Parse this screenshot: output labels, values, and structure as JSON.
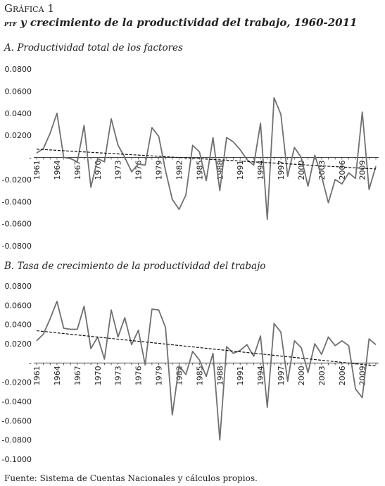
{
  "header": {
    "figure_label": "Gráfica 1",
    "title_abbrev": "ptf",
    "title_rest": " y crecimiento de la productividad del trabajo, 1960-2011"
  },
  "source": "Fuente: Sistema de Cuentas Nacionales y cálculos propios.",
  "chart_data": [
    {
      "type": "line",
      "title": "A. Productividad total de los factores",
      "xlabel": "",
      "ylabel": "",
      "ylim": [
        -0.08,
        0.08
      ],
      "yticks": [
        "0.0800",
        "0.0600",
        "0.0400",
        "0.0200",
        "-",
        "-0.0200",
        "-0.0400",
        "-0.0600",
        "-0.0800"
      ],
      "xticks": [
        "1961",
        "1964",
        "1967",
        "1970",
        "1973",
        "1976",
        "1979",
        "1982",
        "1985",
        "1988",
        "1991",
        "1994",
        "1997",
        "2000",
        "2003",
        "2006",
        "2009"
      ],
      "grid": false,
      "x": [
        1961,
        1962,
        1963,
        1964,
        1965,
        1966,
        1967,
        1968,
        1969,
        1970,
        1971,
        1972,
        1973,
        1974,
        1975,
        1976,
        1977,
        1978,
        1979,
        1980,
        1981,
        1982,
        1983,
        1984,
        1985,
        1986,
        1987,
        1988,
        1989,
        1990,
        1991,
        1992,
        1993,
        1994,
        1995,
        1996,
        1997,
        1998,
        1999,
        2000,
        2001,
        2002,
        2003,
        2004,
        2005,
        2006,
        2007,
        2008,
        2009,
        2010,
        2011
      ],
      "series": [
        {
          "values": [
            0.004,
            0.008,
            0.022,
            0.04,
            0.0,
            -0.001,
            -0.004,
            0.029,
            -0.027,
            -0.001,
            -0.004,
            0.035,
            0.011,
            0.0,
            -0.013,
            -0.006,
            -0.007,
            0.027,
            0.019,
            -0.012,
            -0.038,
            -0.047,
            -0.034,
            0.011,
            0.005,
            -0.021,
            0.018,
            -0.03,
            0.018,
            0.014,
            0.007,
            -0.002,
            -0.007,
            0.031,
            -0.056,
            0.054,
            0.039,
            -0.017,
            0.009,
            0.0,
            -0.026,
            0.002,
            -0.017,
            -0.041,
            -0.02,
            -0.024,
            -0.014,
            -0.019,
            0.041,
            -0.029,
            -0.008
          ]
        }
      ],
      "trend": {
        "x": [
          1961,
          2011
        ],
        "values": [
          0.0075,
          -0.0105
        ]
      }
    },
    {
      "type": "line",
      "title": "B. Tasa de crecimiento de la productividad del trabajo",
      "xlabel": "",
      "ylabel": "",
      "ylim": [
        -0.1,
        0.08
      ],
      "yticks": [
        "0.0800",
        "0.0600",
        "0.0400",
        "0.0200",
        "-",
        "-0.0200",
        "-0.0400",
        "-0.0600",
        "-0.0800",
        "-0.1000"
      ],
      "xticks": [
        "1961",
        "1964",
        "1967",
        "1970",
        "1973",
        "1976",
        "1979",
        "1982",
        "1985",
        "1988",
        "1991",
        "1994",
        "1997",
        "2000",
        "2003",
        "2006",
        "2009"
      ],
      "grid": false,
      "x": [
        1961,
        1962,
        1963,
        1964,
        1965,
        1966,
        1967,
        1968,
        1969,
        1970,
        1971,
        1972,
        1973,
        1974,
        1975,
        1976,
        1977,
        1978,
        1979,
        1980,
        1981,
        1982,
        1983,
        1984,
        1985,
        1986,
        1987,
        1988,
        1989,
        1990,
        1991,
        1992,
        1993,
        1994,
        1995,
        1996,
        1997,
        1998,
        1999,
        2000,
        2001,
        2002,
        2003,
        2004,
        2005,
        2006,
        2007,
        2008,
        2009,
        2010,
        2011
      ],
      "series": [
        {
          "values": [
            0.023,
            0.03,
            0.046,
            0.064,
            0.036,
            0.035,
            0.035,
            0.059,
            0.015,
            0.027,
            0.004,
            0.055,
            0.027,
            0.047,
            0.019,
            0.034,
            -0.002,
            0.056,
            0.055,
            0.037,
            -0.054,
            -0.003,
            -0.012,
            0.012,
            0.003,
            -0.014,
            0.01,
            -0.08,
            0.017,
            0.01,
            0.013,
            0.019,
            0.007,
            0.028,
            -0.046,
            0.041,
            0.032,
            -0.019,
            0.023,
            0.016,
            -0.01,
            0.02,
            0.009,
            0.027,
            0.018,
            0.023,
            0.018,
            -0.027,
            -0.036,
            0.025,
            0.019
          ]
        }
      ],
      "trend": {
        "x": [
          1961,
          2011
        ],
        "values": [
          0.0335,
          -0.003
        ]
      }
    }
  ]
}
